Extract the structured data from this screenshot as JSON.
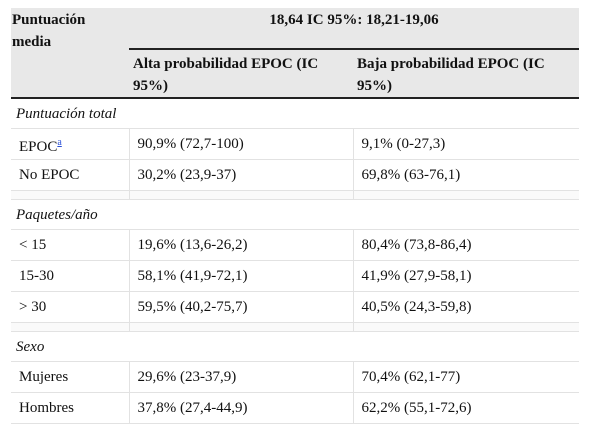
{
  "table": {
    "header": {
      "row_label": "Puntuación media",
      "span_title": "18,64 IC 95%: 18,21-19,06",
      "col_high": "Alta probabilidad EPOC (IC 95%)",
      "col_low": "Baja probabilidad EPOC (IC 95%)"
    },
    "sections": [
      {
        "title": "Puntuación total",
        "rows": [
          {
            "label": "EPOC",
            "sup": "a",
            "high": "90,9% (72,7-100)",
            "low": "9,1% (0-27,3)"
          },
          {
            "label": "No EPOC",
            "high": "30,2% (23,9-37)",
            "low": "69,8% (63-76,1)"
          }
        ]
      },
      {
        "title": "Paquetes/año",
        "rows": [
          {
            "label": "< 15",
            "high": "19,6% (13,6-26,2)",
            "low": "80,4% (73,8-86,4)"
          },
          {
            "label": "15-30",
            "high": "58,1% (41,9-72,1)",
            "low": "41,9% (27,9-58,1)"
          },
          {
            "label": "> 30",
            "high": "59,5% (40,2-75,7)",
            "low": "40,5% (24,3-59,8)"
          }
        ]
      },
      {
        "title": "Sexo",
        "rows": [
          {
            "label": "Mujeres",
            "high": "29,6% (23-37,9)",
            "low": "70,4% (62,1-77)"
          },
          {
            "label": "Hombres",
            "high": "37,8% (27,4-44,9)",
            "low": "62,2% (55,1-72,6)"
          }
        ]
      }
    ]
  }
}
